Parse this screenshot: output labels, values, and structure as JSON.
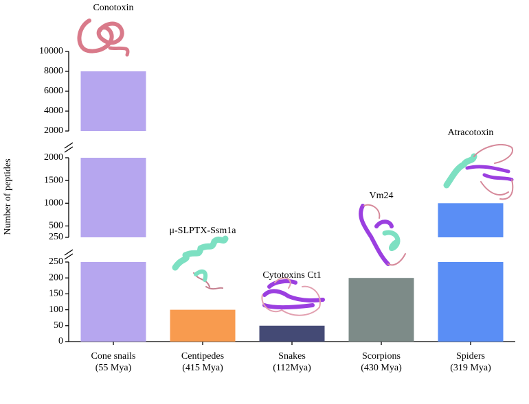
{
  "chart_data": {
    "type": "bar",
    "y_label": "Number of peptides",
    "categories": [
      "Cone snails",
      "Centipedes",
      "Snakes",
      "Scorpions",
      "Spiders"
    ],
    "subcategories": [
      "(55 Mya)",
      "(415 Mya)",
      "(112Mya)",
      "(430 Mya)",
      "(319 Mya)"
    ],
    "values": [
      8000,
      100,
      50,
      200,
      1000
    ],
    "colors": [
      "#b6a6ef",
      "#f89b4f",
      "#444a75",
      "#7d8b88",
      "#5a8ef5"
    ],
    "annotations": [
      "Conotoxin",
      "μ-SLPTX-Ssm1a",
      "Cytotoxins Ct1",
      "Vm24",
      "Atracotoxin"
    ],
    "axis_segments": [
      {
        "ylim": [
          0,
          250
        ],
        "yticks": [
          0,
          50,
          100,
          150,
          200,
          250
        ]
      },
      {
        "ylim": [
          250,
          2000
        ],
        "yticks": [
          250,
          500,
          1000,
          1500,
          2000
        ]
      },
      {
        "ylim": [
          2000,
          10000
        ],
        "yticks": [
          2000,
          4000,
          6000,
          8000,
          10000
        ]
      }
    ]
  }
}
